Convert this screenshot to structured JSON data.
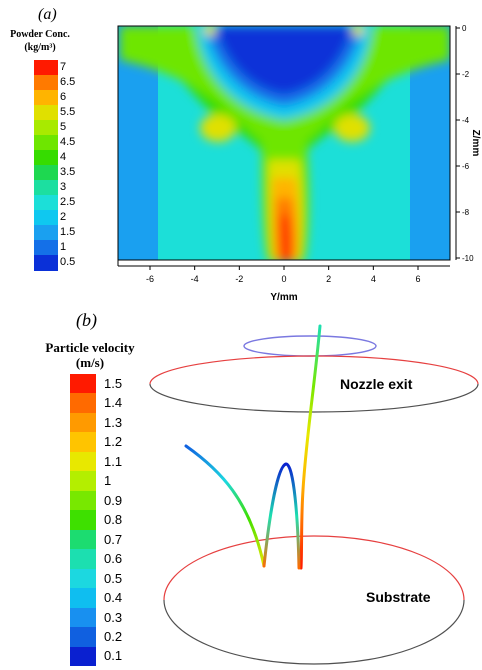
{
  "panel_a": {
    "label": "(a)",
    "legend": {
      "title_line1": "Powder Conc.",
      "title_line2": "(kg/m³)",
      "levels": [
        "7",
        "6.5",
        "6",
        "5.5",
        "5",
        "4.5",
        "4",
        "3.5",
        "3",
        "2.5",
        "2",
        "1.5",
        "1",
        "0.5"
      ],
      "colors": [
        "#ff1a00",
        "#ff7a00",
        "#ffb400",
        "#e0e000",
        "#a8ea00",
        "#6ee600",
        "#36dc00",
        "#1ed850",
        "#1cdfa0",
        "#1cdfd8",
        "#0fc8f0",
        "#1aa0f0",
        "#1470e8",
        "#0a30d8"
      ]
    },
    "x_axis": {
      "label": "Y/mm",
      "ticks": [
        "-6",
        "-4",
        "-2",
        "0",
        "2",
        "4",
        "6"
      ]
    },
    "y_axis": {
      "label": "Z/mm",
      "ticks": [
        "0",
        "-2",
        "-4",
        "-6",
        "-8",
        "-10"
      ]
    }
  },
  "panel_b": {
    "label": "(b)",
    "legend": {
      "title_line1": "Particle velocity",
      "title_line2": "(m/s)",
      "levels": [
        "1.5",
        "1.4",
        "1.3",
        "1.2",
        "1.1",
        "1",
        "0.9",
        "0.8",
        "0.7",
        "0.6",
        "0.5",
        "0.4",
        "0.3",
        "0.2",
        "0.1"
      ],
      "colors": [
        "#ff1a00",
        "#ff6a00",
        "#ff9a00",
        "#ffc400",
        "#e8e800",
        "#b4ee00",
        "#78e800",
        "#3ee000",
        "#1cdc70",
        "#1cdfb0",
        "#1cd8e0",
        "#0fbef0",
        "#1890f0",
        "#1060e0",
        "#0a20d0"
      ]
    },
    "annotations": {
      "nozzle": "Nozzle exit",
      "substrate": "Substrate"
    }
  }
}
